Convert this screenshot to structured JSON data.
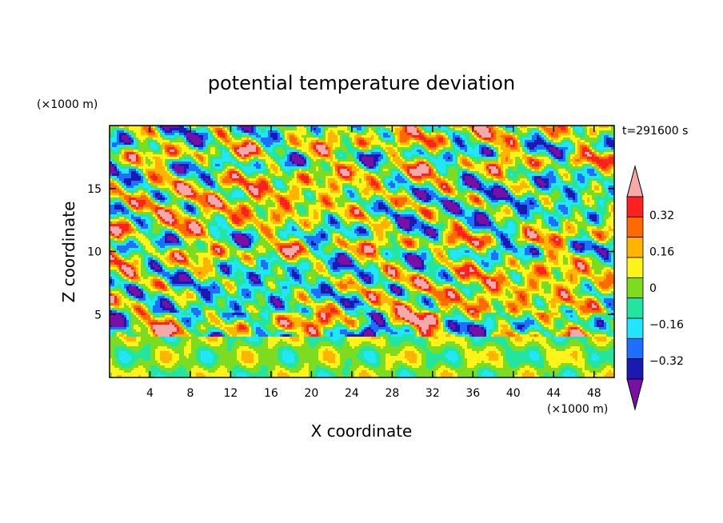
{
  "chart_data": {
    "type": "heatmap",
    "title": "potential temperature deviation",
    "xlabel": "X coordinate",
    "ylabel": "Z coordinate",
    "x_unit": "(×1000 m)",
    "y_unit": "(×1000 m)",
    "time_label": "t=291600 s",
    "xlim": [
      0,
      50
    ],
    "ylim": [
      0,
      20
    ],
    "x_ticks": [
      4,
      8,
      12,
      16,
      20,
      24,
      28,
      32,
      36,
      40,
      44,
      48
    ],
    "y_ticks": [
      5,
      10,
      15
    ],
    "colorbar": {
      "levels": [
        -0.4,
        -0.32,
        -0.24,
        -0.16,
        -0.08,
        0,
        0.08,
        0.16,
        0.24,
        0.32,
        0.4
      ],
      "labels": [
        "0.32",
        "0.16",
        "0",
        "−0.16",
        "−0.32"
      ],
      "label_values": [
        0.32,
        0.16,
        0,
        -0.16,
        -0.32
      ],
      "colors_low_to_high": [
        "#7a0fa6",
        "#1a1ab0",
        "#1e6fff",
        "#22e6ff",
        "#22e6a0",
        "#7ddc1f",
        "#fff41a",
        "#ffb400",
        "#ff6a00",
        "#ff2020",
        "#f7a8a8"
      ],
      "under_color": "#7a0fa6",
      "over_color": "#f7a8a8",
      "extend": "both"
    }
  }
}
